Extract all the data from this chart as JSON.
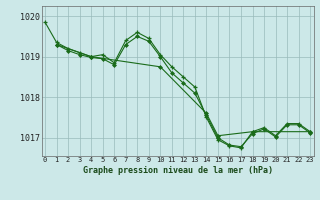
{
  "background_color": "#cce8e8",
  "line_color": "#1a6b1a",
  "grid_color": "#99bbbb",
  "title": "Graphe pression niveau de la mer (hPa)",
  "ylabel_ticks": [
    1017,
    1018,
    1019,
    1020
  ],
  "xlim": [
    -0.3,
    23.3
  ],
  "ylim": [
    1016.55,
    1020.25
  ],
  "series_zigzag1": {
    "x": [
      0,
      1,
      2,
      3,
      4,
      5,
      6,
      7,
      8,
      9,
      10,
      11,
      12,
      13,
      14,
      15,
      16,
      17,
      18,
      19,
      20,
      21,
      22,
      23
    ],
    "y": [
      1019.85,
      1019.35,
      1019.2,
      1019.1,
      1019.0,
      1019.05,
      1018.85,
      1019.4,
      1019.6,
      1019.45,
      1019.05,
      1018.75,
      1018.5,
      1018.25,
      1017.5,
      1016.95,
      1016.8,
      1016.75,
      1017.15,
      1017.25,
      1017.05,
      1017.35,
      1017.35,
      1017.15
    ]
  },
  "series_zigzag2": {
    "x": [
      1,
      2,
      3,
      4,
      5,
      6,
      7,
      8,
      9,
      10,
      11,
      12,
      13,
      14,
      15,
      16,
      17,
      18,
      19,
      20,
      21,
      22,
      23
    ],
    "y": [
      1019.3,
      1019.15,
      1019.05,
      1018.98,
      1018.95,
      1018.8,
      1019.3,
      1019.5,
      1019.38,
      1019.0,
      1018.6,
      1018.35,
      1018.1,
      1017.55,
      1017.0,
      1016.82,
      1016.78,
      1017.1,
      1017.22,
      1017.02,
      1017.32,
      1017.32,
      1017.12
    ]
  },
  "series_diagonal": {
    "x": [
      1,
      4,
      10,
      14,
      15,
      18,
      23
    ],
    "y": [
      1019.3,
      1019.0,
      1018.75,
      1017.6,
      1017.05,
      1017.15,
      1017.15
    ]
  }
}
